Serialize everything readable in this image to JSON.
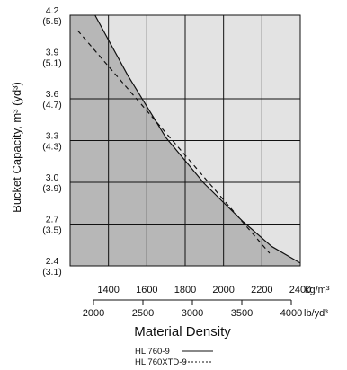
{
  "chart_data": {
    "type": "line",
    "ylabel": "Bucket Capacity, m³ (yd³)",
    "xlabel": "Material Density",
    "x_primary": {
      "unit": "kg/m³",
      "ticks": [
        1400,
        1600,
        1800,
        2000,
        2200,
        2400
      ],
      "tick_labels": [
        "1400",
        "1600",
        "1800",
        "2000",
        "2200",
        "2400"
      ],
      "range": [
        1200,
        2400
      ]
    },
    "x_secondary": {
      "unit": "lb/yd³",
      "ticks": [
        2000,
        2500,
        3000,
        3500,
        4000
      ],
      "tick_labels": [
        "2000",
        "2500",
        "3000",
        "3500",
        "4000"
      ]
    },
    "y_ticks": [
      {
        "value": 4.2,
        "label": "4.2",
        "label_yd": "(5.5)"
      },
      {
        "value": 3.9,
        "label": "3.9",
        "label_yd": "(5.1)"
      },
      {
        "value": 3.6,
        "label": "3.6",
        "label_yd": "(4.7)"
      },
      {
        "value": 3.3,
        "label": "3.3",
        "label_yd": "(4.3)"
      },
      {
        "value": 3.0,
        "label": "3.0",
        "label_yd": "(3.9)"
      },
      {
        "value": 2.7,
        "label": "2.7",
        "label_yd": "(3.5)"
      },
      {
        "value": 2.4,
        "label": "2.4",
        "label_yd": "(3.1)"
      }
    ],
    "ylim": [
      2.4,
      4.2
    ],
    "grid": true,
    "series": [
      {
        "name": "HL 760-9",
        "style": "solid",
        "x": [
          1330,
          1500,
          1700,
          1900,
          2100,
          2250,
          2400
        ],
        "y": [
          4.2,
          3.77,
          3.32,
          2.99,
          2.72,
          2.54,
          2.42
        ]
      },
      {
        "name": "HL 760XTD-9",
        "style": "dashed",
        "x": [
          1240,
          2240
        ],
        "y": [
          4.09,
          2.49
        ]
      }
    ],
    "legend": {
      "position": "bottom",
      "items": [
        {
          "name": "HL 760-9",
          "style": "solid"
        },
        {
          "name": "HL 760XTD-9",
          "style": "dashed"
        }
      ]
    },
    "colors": {
      "dark_region": "#b7b7b7",
      "light_region": "#e3e3e3",
      "grid": "#111111"
    }
  }
}
